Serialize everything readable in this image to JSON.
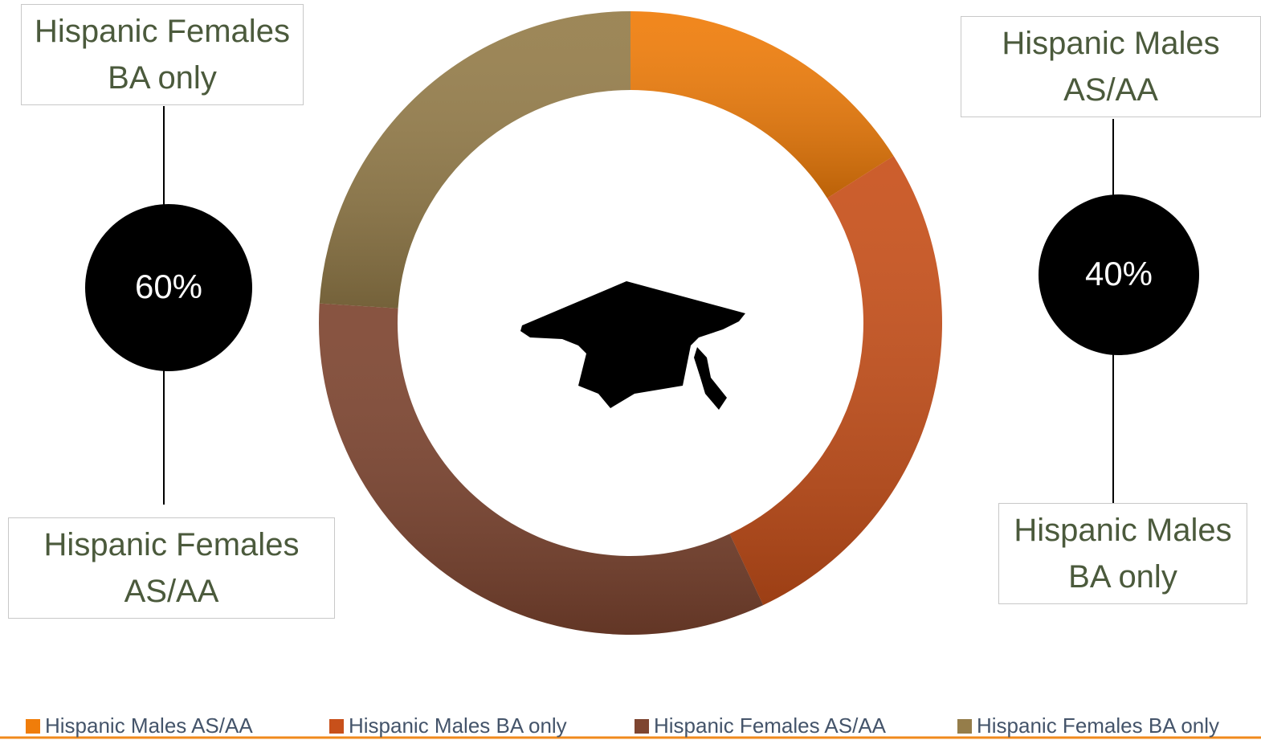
{
  "chart_data": {
    "type": "donut",
    "categories": [
      "Hispanic Males AS/AA",
      "Hispanic Males BA only",
      "Hispanic Females AS/AA",
      "Hispanic Females BA only"
    ],
    "values": [
      16,
      27,
      33,
      24
    ],
    "colors": [
      "#f07d0a",
      "#c8501a",
      "#7e4530",
      "#957d4a"
    ],
    "annotations": [
      {
        "text": "60%"
      },
      {
        "text": "40%"
      }
    ],
    "legend": "bottom"
  }
}
